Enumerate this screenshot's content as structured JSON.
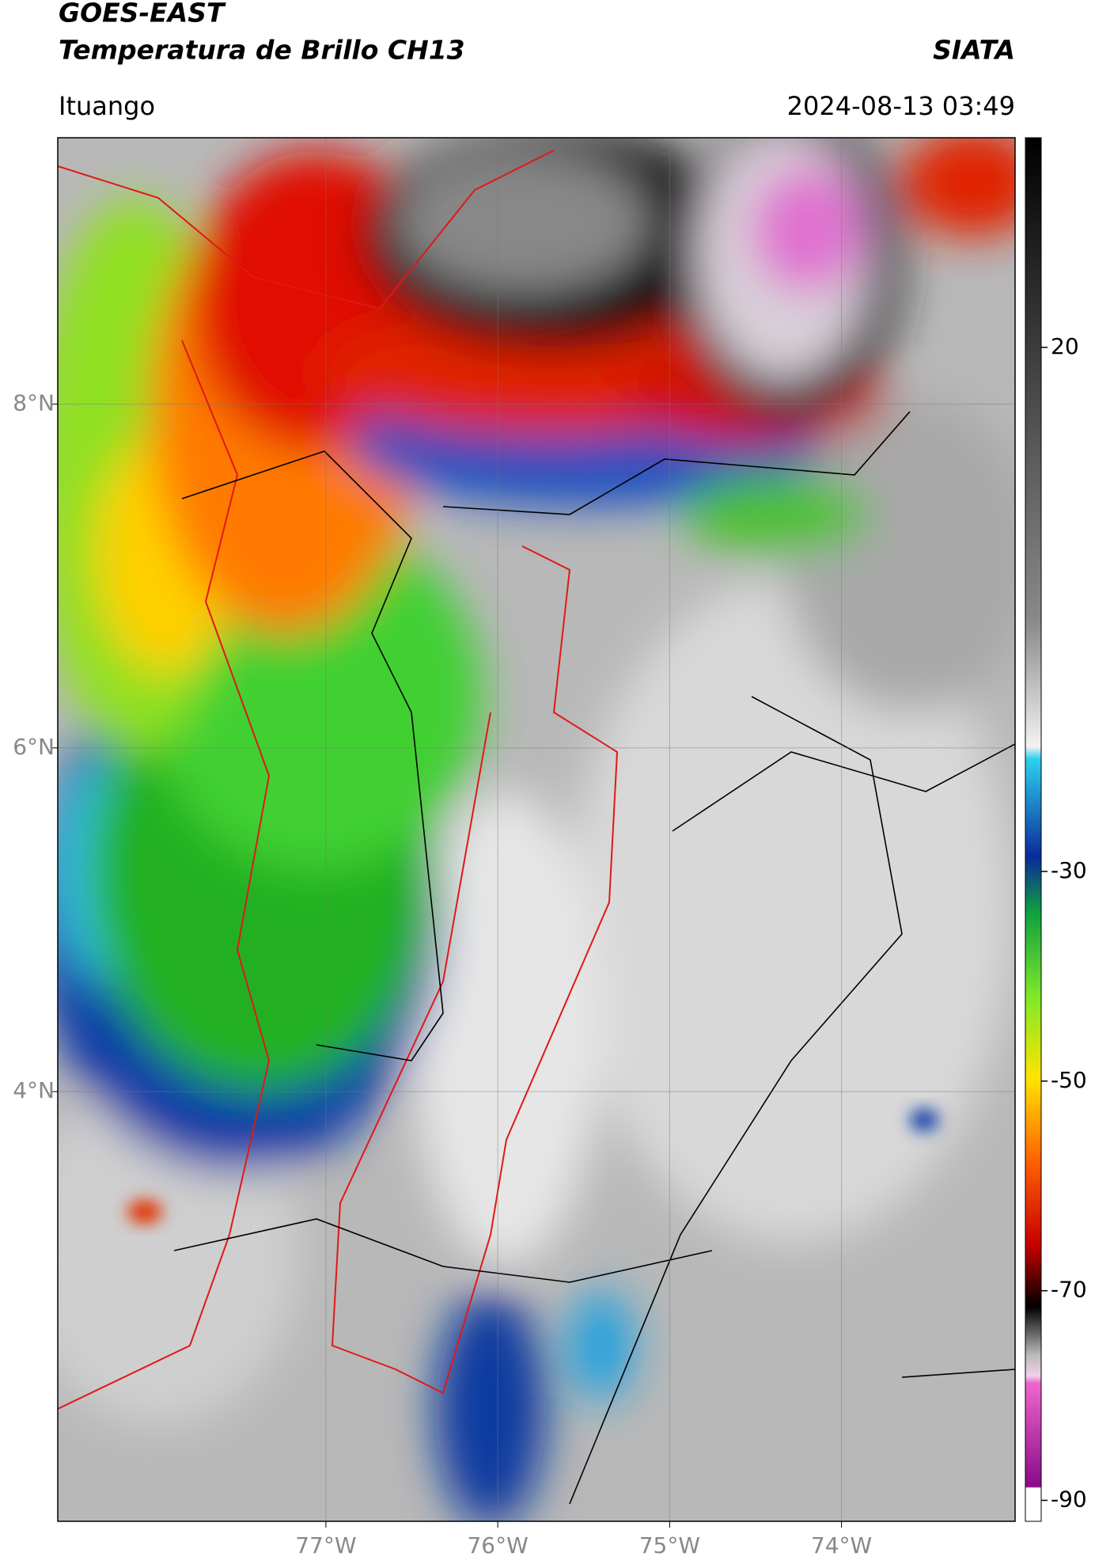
{
  "header": {
    "title": "GOES-EAST",
    "subtitle": "Temperatura de Brillo CH13",
    "source": "SIATA",
    "location": "Ituango",
    "timestamp": "2024-08-13 03:49"
  },
  "map": {
    "xlim": [
      -78.56,
      -72.99
    ],
    "ylim": [
      1.5,
      9.55
    ],
    "xticks": [
      {
        "value": -77,
        "label": "77°W"
      },
      {
        "value": -76,
        "label": "76°W"
      },
      {
        "value": -75,
        "label": "75°W"
      },
      {
        "value": -74,
        "label": "74°W"
      }
    ],
    "yticks": [
      {
        "value": 8,
        "label": "8°N"
      },
      {
        "value": 6,
        "label": "6°N"
      },
      {
        "value": 4,
        "label": "4°N"
      }
    ],
    "grid": true
  },
  "colorbar": {
    "clim": [
      -92,
      40
    ],
    "ticks": [
      20,
      -30,
      -50,
      -70,
      -90
    ]
  }
}
